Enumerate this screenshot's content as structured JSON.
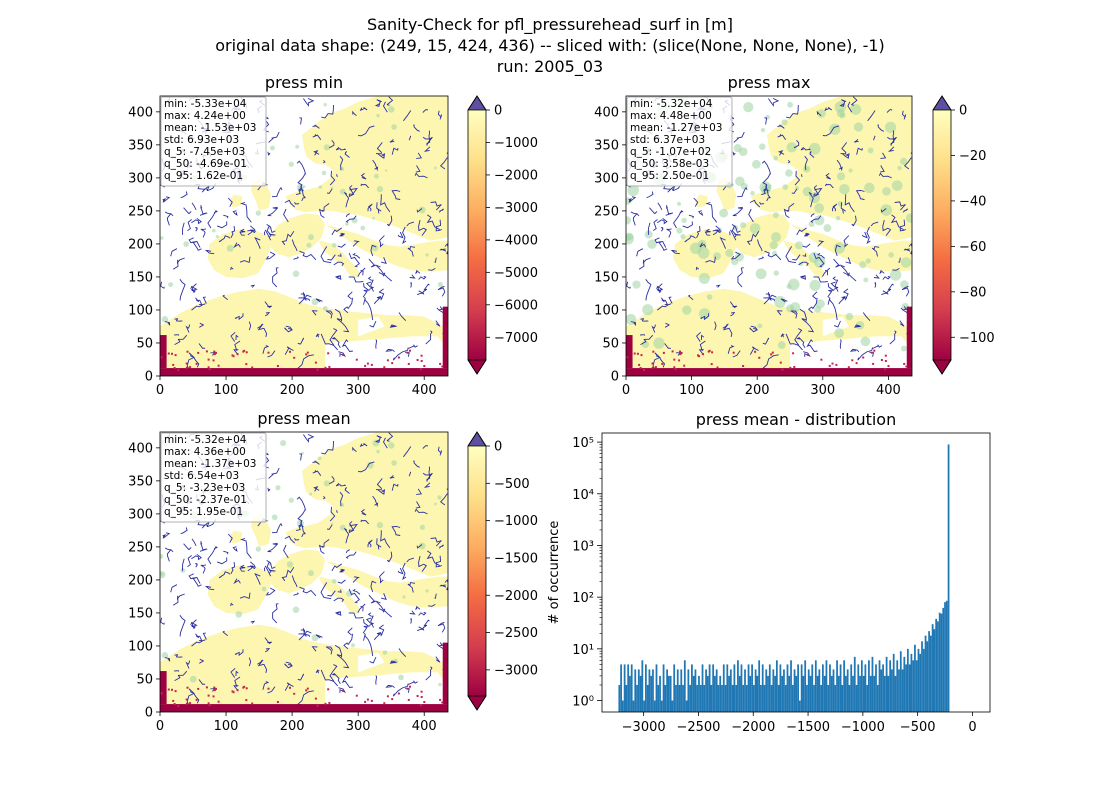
{
  "figure": {
    "title_lines": [
      "Sanity-Check for pfl_pressurehead_surf in [m]",
      "original data shape: (249, 15, 424, 436) -- sliced with: (slice(None, None, None), -1)",
      "run: 2005_03"
    ]
  },
  "colors": {
    "land": "#fcf6b0",
    "river": "#2b2f9e",
    "green_patch": "#9fd3a3",
    "coast_strip": "#9e0142",
    "coast_dots": "#c8244b",
    "hist_bar": "#1f77b4",
    "cmap_stops": [
      "#9e0142",
      "#d53e4f",
      "#f46d43",
      "#fdae61",
      "#fee08b",
      "#ffffbf"
    ],
    "cbar_extend_top": "#5e4fa2"
  },
  "chart_data": [
    {
      "type": "heatmap",
      "title": "press min",
      "xlim": [
        0,
        436
      ],
      "ylim": [
        0,
        424
      ],
      "xticks": [
        0,
        100,
        200,
        300,
        400
      ],
      "yticks": [
        0,
        50,
        100,
        150,
        200,
        250,
        300,
        350,
        400
      ],
      "stats": [
        "min: -5.33e+04",
        "max: 4.24e+00",
        "mean: -1.53e+03",
        "std: 6.93e+03",
        "q_5: -7.45e+03",
        "q_50: -4.69e-01",
        "q_95: 1.62e-01"
      ],
      "colorbar": {
        "vmin": -7700,
        "vmax": 0,
        "ticks": [
          0,
          -1000,
          -2000,
          -3000,
          -4000,
          -5000,
          -6000,
          -7000
        ],
        "extend": "both"
      }
    },
    {
      "type": "heatmap",
      "title": "press max",
      "xlim": [
        0,
        436
      ],
      "ylim": [
        0,
        424
      ],
      "xticks": [
        0,
        100,
        200,
        300,
        400
      ],
      "yticks": [
        0,
        50,
        100,
        150,
        200,
        250,
        300,
        350,
        400
      ],
      "stats": [
        "min: -5.32e+04",
        "max: 4.48e+00",
        "mean: -1.27e+03",
        "std: 6.37e+03",
        "q_5: -1.07e+02",
        "q_50: 3.58e-03",
        "q_95: 2.50e-01"
      ],
      "colorbar": {
        "vmin": -110,
        "vmax": 0,
        "ticks": [
          0,
          -20,
          -40,
          -60,
          -80,
          -100
        ],
        "extend": "both"
      }
    },
    {
      "type": "heatmap",
      "title": "press mean",
      "xlim": [
        0,
        436
      ],
      "ylim": [
        0,
        424
      ],
      "xticks": [
        0,
        100,
        200,
        300,
        400
      ],
      "yticks": [
        0,
        50,
        100,
        150,
        200,
        250,
        300,
        350,
        400
      ],
      "stats": [
        "min: -5.32e+04",
        "max: 4.36e+00",
        "mean: -1.37e+03",
        "std: 6.54e+03",
        "q_5: -3.23e+03",
        "q_50: -2.37e-01",
        "q_95: 1.95e-01"
      ],
      "colorbar": {
        "vmin": -3350,
        "vmax": 0,
        "ticks": [
          0,
          -500,
          -1000,
          -1500,
          -2000,
          -2500,
          -3000
        ],
        "extend": "both"
      }
    },
    {
      "type": "bar",
      "title": "press mean - distribution",
      "xlabel": "",
      "ylabel": "# of occurrence",
      "yscale": "log",
      "xlim": [
        -3380,
        160
      ],
      "ylim": [
        0.6,
        150000
      ],
      "xticks": [
        -3000,
        -2500,
        -2000,
        -1500,
        -1000,
        -500,
        0
      ],
      "xtick_labels": [
        "−3000",
        "−2500",
        "−2000",
        "−1500",
        "−1000",
        "−500",
        "0"
      ],
      "ytick_labels": [
        "10⁰",
        "10¹",
        "10²",
        "10³",
        "10⁴",
        "10⁵"
      ],
      "bin_start": -3230,
      "bin_width": 16.15,
      "values": [
        2,
        5,
        1,
        5,
        2,
        5,
        3,
        5,
        1,
        4,
        2,
        4,
        3,
        6,
        1,
        5,
        2,
        4,
        3,
        4,
        1,
        5,
        2,
        3,
        1,
        5,
        2,
        4,
        3,
        3,
        1,
        5,
        2,
        4,
        2,
        4,
        2,
        6,
        1,
        4,
        2,
        5,
        3,
        4,
        2,
        3,
        2,
        5,
        2,
        4,
        3,
        5,
        2,
        5,
        3,
        4,
        2,
        3,
        2,
        5,
        2,
        5,
        3,
        4,
        2,
        5,
        2,
        6,
        3,
        5,
        2,
        4,
        2,
        5,
        3,
        5,
        2,
        4,
        3,
        6,
        2,
        5,
        2,
        4,
        3,
        5,
        2,
        4,
        3,
        6,
        2,
        5,
        3,
        4,
        2,
        5,
        3,
        6,
        2,
        4,
        3,
        5,
        1,
        5,
        3,
        6,
        2,
        4,
        3,
        5,
        2,
        6,
        3,
        4,
        2,
        5,
        3,
        6,
        2,
        5,
        3,
        4,
        2,
        6,
        3,
        5,
        2,
        6,
        3,
        4,
        2,
        5,
        3,
        7,
        2,
        5,
        3,
        6,
        3,
        5,
        2,
        6,
        3,
        7,
        3,
        5,
        2,
        6,
        4,
        5,
        3,
        7,
        3,
        6,
        4,
        8,
        3,
        6,
        4,
        9,
        4,
        7,
        5,
        10,
        5,
        8,
        6,
        12,
        6,
        10,
        8,
        14,
        10,
        18,
        14,
        22,
        18,
        30,
        24,
        38,
        34,
        50,
        48,
        62,
        80,
        85,
        90000
      ]
    }
  ]
}
